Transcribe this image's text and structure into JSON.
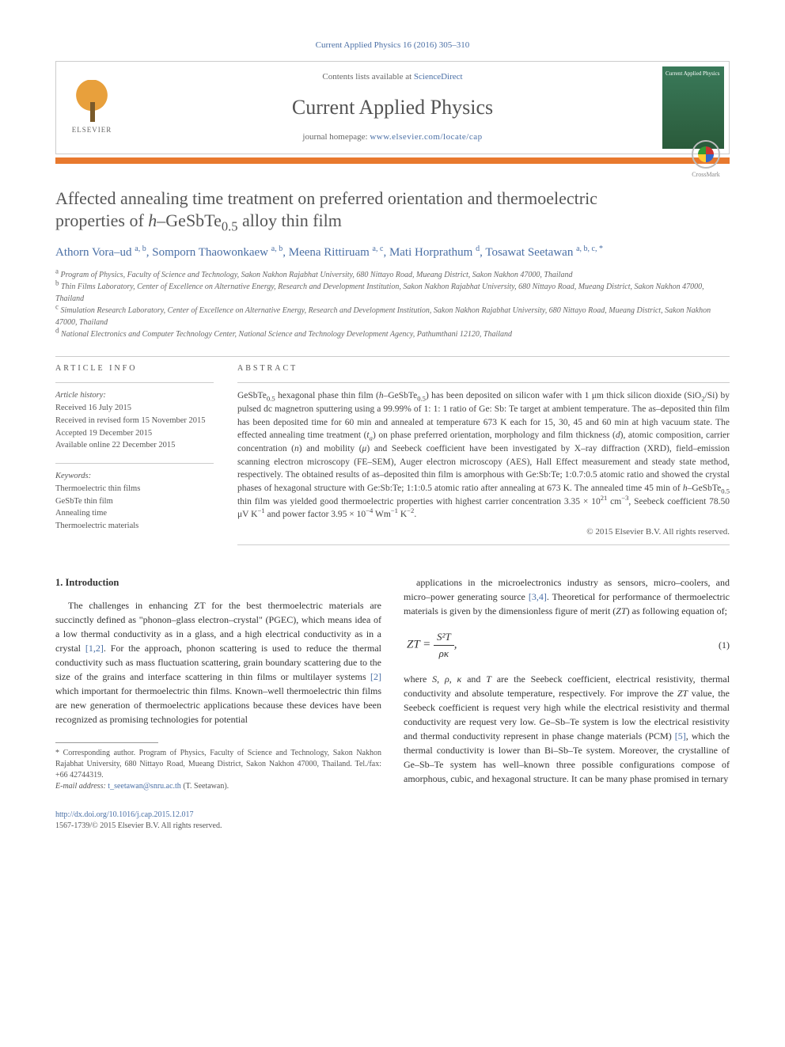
{
  "citation": "Current Applied Physics 16 (2016) 305–310",
  "header": {
    "contents_prefix": "Contents lists available at ",
    "contents_link": "ScienceDirect",
    "journal": "Current Applied Physics",
    "homepage_prefix": "journal homepage: ",
    "homepage_url": "www.elsevier.com/locate/cap",
    "publisher_label": "ELSEVIER",
    "cover_label": "Current Applied Physics"
  },
  "crossmark": "CrossMark",
  "title_html": "Affected annealing time treatment on preferred orientation and thermoelectric properties of <i>h</i>–GeSbTe<sub>0.5</sub> alloy thin film",
  "authors_html": "Athorn Vora–ud <sup>a, b</sup>, Somporn Thaowonkaew <sup>a, b</sup>, Meena Rittiruam <sup>a, c</sup>, Mati Horprathum <sup>d</sup>, Tosawat Seetawan <sup>a, b, c, *</sup>",
  "affiliations": [
    "a Program of Physics, Faculty of Science and Technology, Sakon Nakhon Rajabhat University, 680 Nittayo Road, Mueang District, Sakon Nakhon 47000, Thailand",
    "b Thin Films Laboratory, Center of Excellence on Alternative Energy, Research and Development Institution, Sakon Nakhon Rajabhat University, 680 Nittayo Road, Mueang District, Sakon Nakhon 47000, Thailand",
    "c Simulation Research Laboratory, Center of Excellence on Alternative Energy, Research and Development Institution, Sakon Nakhon Rajabhat University, 680 Nittayo Road, Mueang District, Sakon Nakhon 47000, Thailand",
    "d National Electronics and Computer Technology Center, National Science and Technology Development Agency, Pathumthani 12120, Thailand"
  ],
  "article_info": {
    "heading": "ARTICLE INFO",
    "history_label": "Article history:",
    "history": [
      "Received 16 July 2015",
      "Received in revised form 15 November 2015",
      "Accepted 19 December 2015",
      "Available online 22 December 2015"
    ],
    "keywords_label": "Keywords:",
    "keywords": [
      "Thermoelectric thin films",
      "GeSbTe thin film",
      "Annealing time",
      "Thermoelectric materials"
    ]
  },
  "abstract": {
    "heading": "ABSTRACT",
    "text_html": "GeSbTe<sub>0.5</sub> hexagonal phase thin film (<i>h</i>–GeSbTe<sub>0.5</sub>) has been deposited on silicon wafer with 1 μm thick silicon dioxide (SiO<sub>2</sub>/Si) by pulsed dc magnetron sputtering using a 99.99% of 1: 1: 1 ratio of Ge: Sb: Te target at ambient temperature. The as–deposited thin film has been deposited time for 60 min and annealed at temperature 673 K each for 15, 30, 45 and 60 min at high vacuum state. The effected annealing time treatment (<i>t<sub>a</sub></i>) on phase preferred orientation, morphology and film thickness (<i>d</i>), atomic composition, carrier concentration (<i>n</i>) and mobility (<i>μ</i>) and Seebeck coefficient have been investigated by X–ray diffraction (XRD), field–emission scanning electron microscopy (FE–SEM), Auger electron microscopy (AES), Hall Effect measurement and steady state method, respectively. The obtained results of as–deposited thin film is amorphous with Ge:Sb:Te; 1:0.7:0.5 atomic ratio and showed the crystal phases of hexagonal structure with Ge:Sb:Te; 1:1:0.5 atomic ratio after annealing at 673 K. The annealed time 45 min of <i>h</i>–GeSbTe<sub>0.5</sub> thin film was yielded good thermoelectric properties with highest carrier concentration 3.35 × 10<sup>21</sup> cm<sup>−3</sup>, Seebeck coefficient 78.50 μV K<sup>−1</sup> and power factor 3.95 × 10<sup>−4</sup> Wm<sup>−1</sup> K<sup>−2</sup>.",
    "copyright": "© 2015 Elsevier B.V. All rights reserved."
  },
  "body": {
    "section1_heading": "1. Introduction",
    "left_para_html": "The challenges in enhancing ZT for the best thermoelectric materials are succinctly defined as \"phonon–glass electron–crystal\" (PGEC), which means idea of a low thermal conductivity as in a glass, and a high electrical conductivity as in a crystal <span class='ref'>[1,2]</span>. For the approach, phonon scattering is used to reduce the thermal conductivity such as mass fluctuation scattering, grain boundary scattering due to the size of the grains and interface scattering in thin films or multilayer systems <span class='ref'>[2]</span> which important for thermoelectric thin films. Known–well thermoelectric thin films are new generation of thermoelectric applications because these devices have been recognized as promising technologies for potential",
    "right_para1_html": "applications in the microelectronics industry as sensors, micro–coolers, and micro–power generating source <span class='ref'>[3,4]</span>. Theoretical for performance of thermoelectric materials is given by the dimensionless figure of merit (<i>ZT</i>) as following equation of;",
    "equation": {
      "lhs": "ZT = ",
      "num": "S²T",
      "den": "ρκ",
      "suffix": ",",
      "num_label": "(1)"
    },
    "right_para2_html": "where <i>S</i>, <i>ρ</i>, <i>κ</i> and <i>T</i> are the Seebeck coefficient, electrical resistivity, thermal conductivity and absolute temperature, respectively. For improve the <i>ZT</i> value, the Seebeck coefficient is request very high while the electrical resistivity and thermal conductivity are request very low. Ge–Sb–Te system is low the electrical resistivity and thermal conductivity represent in phase change materials (PCM) <span class='ref'>[5]</span>, which the thermal conductivity is lower than Bi–Sb–Te system. Moreover, the crystalline of Ge–Sb–Te system has well–known three possible configurations compose of amorphous, cubic, and hexagonal structure. It can be many phase promised in ternary"
  },
  "footnotes": {
    "corr_html": "* Corresponding author. Program of Physics, Faculty of Science and Technology, Sakon Nakhon Rajabhat University, 680 Nittayo Road, Mueang District, Sakon Nakhon 47000, Thailand. Tel./fax: +66 42744319.",
    "email_label": "E-mail address: ",
    "email": "t_seetawan@snru.ac.th",
    "email_suffix": " (T. Seetawan)."
  },
  "bottom": {
    "doi": "http://dx.doi.org/10.1016/j.cap.2015.12.017",
    "issn_line": "1567-1739/© 2015 Elsevier B.V. All rights reserved."
  },
  "colors": {
    "link": "#4a6fa5",
    "accent_bar": "#e8792e",
    "text": "#333333",
    "muted": "#666666",
    "border": "#cccccc"
  },
  "typography": {
    "title_fontsize": 22,
    "journal_fontsize": 26,
    "body_fontsize": 12,
    "abstract_fontsize": 11.5,
    "affil_fontsize": 10,
    "font_family": "Georgia, Times New Roman, serif"
  }
}
